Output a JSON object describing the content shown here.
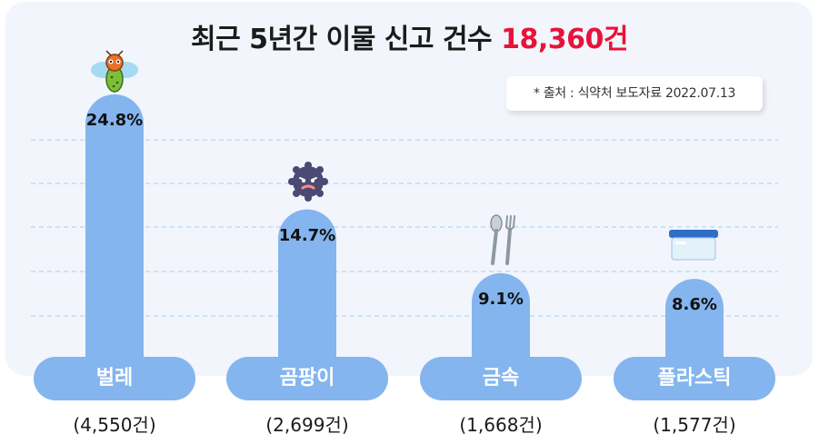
{
  "title": {
    "main": "최근 5년간 이물 신고 건수",
    "total": "18,360건"
  },
  "source": "* 출처 : 식약처 보도자료 2022.07.13",
  "chart_data": {
    "type": "bar",
    "title": "최근 5년간 이물 신고 건수 18,360건",
    "categories": [
      "벌레",
      "곰팡이",
      "금속",
      "플라스틱"
    ],
    "values": [
      24.8,
      14.7,
      9.1,
      8.6
    ],
    "value_labels": [
      "24.8%",
      "14.7%",
      "9.1%",
      "8.6%"
    ],
    "counts": [
      "(4,550건)",
      "(2,699건)",
      "(1,668건)",
      "(1,577건)"
    ],
    "icons": [
      "bug-icon",
      "mold-icon",
      "spoon-fork-icon",
      "plastic-container-icon"
    ],
    "unit": "%",
    "grid": true,
    "colors": {
      "bar": "#84b5ee",
      "highlight": "#e8133a",
      "grid": "#b9d6f3"
    }
  }
}
